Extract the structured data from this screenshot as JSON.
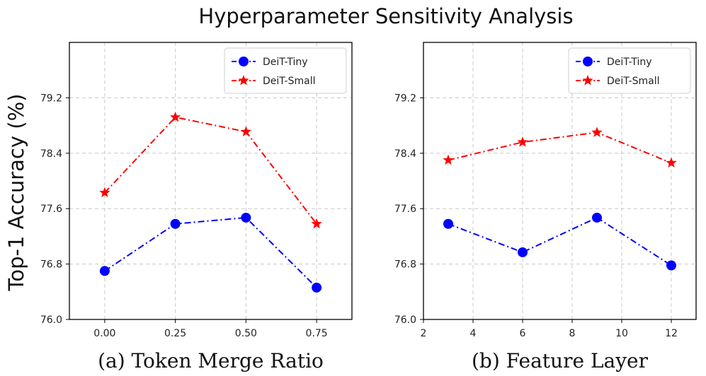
{
  "suptitle": "Hyperparameter Sensitivity Analysis",
  "shared_ylabel": "Top-1 Accuracy (%)",
  "colors": {
    "deit_tiny": "#0000ff",
    "deit_small": "#ff0000"
  },
  "chart_data": [
    {
      "type": "line",
      "xlabel": "(a) Token Merge Ratio",
      "x": [
        0.0,
        0.25,
        0.5,
        0.75
      ],
      "xlim": [
        -0.125,
        0.875
      ],
      "xticks": [
        0.0,
        0.25,
        0.5,
        0.75
      ],
      "xtick_labels": [
        "0.00",
        "0.25",
        "0.50",
        "0.75"
      ],
      "ylim": [
        76.0,
        80.0
      ],
      "yticks": [
        76.0,
        76.8,
        77.6,
        78.4,
        79.2
      ],
      "ytick_labels": [
        "76.0",
        "76.8",
        "77.6",
        "78.4",
        "79.2"
      ],
      "grid": true,
      "legend": "top-right",
      "series": [
        {
          "name": "DeiT-Tiny",
          "marker": "circle",
          "values": [
            76.7,
            77.38,
            77.47,
            76.46
          ]
        },
        {
          "name": "DeiT-Small",
          "marker": "star",
          "values": [
            77.83,
            78.92,
            78.71,
            77.38
          ]
        }
      ]
    },
    {
      "type": "line",
      "xlabel": "(b)  Feature Layer",
      "x": [
        3,
        6,
        9,
        12
      ],
      "xlim": [
        2,
        13
      ],
      "xticks": [
        2,
        4,
        6,
        8,
        10,
        12
      ],
      "xtick_labels": [
        "2",
        "4",
        "6",
        "8",
        "10",
        "12"
      ],
      "ylim": [
        76.0,
        80.0
      ],
      "yticks": [
        76.0,
        76.8,
        77.6,
        78.4,
        79.2
      ],
      "ytick_labels": [
        "76.0",
        "76.8",
        "77.6",
        "78.4",
        "79.2"
      ],
      "grid": true,
      "legend": "top-right",
      "series": [
        {
          "name": "DeiT-Tiny",
          "marker": "circle",
          "values": [
            77.38,
            76.97,
            77.47,
            76.78
          ]
        },
        {
          "name": "DeiT-Small",
          "marker": "star",
          "values": [
            78.3,
            78.56,
            78.7,
            78.26
          ]
        }
      ]
    }
  ]
}
